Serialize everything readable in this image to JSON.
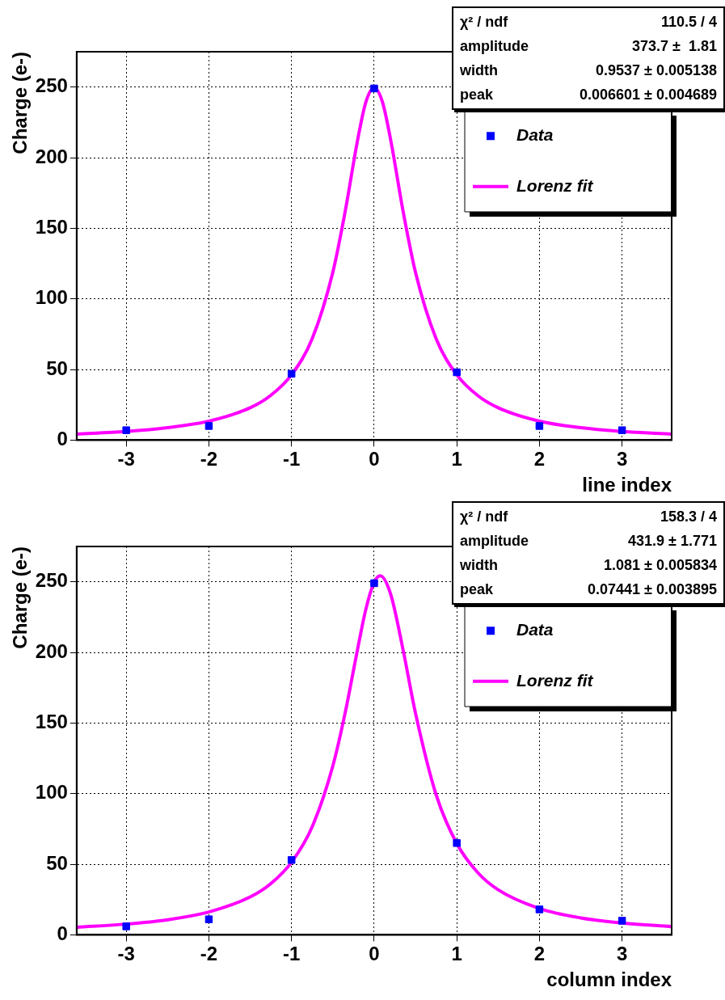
{
  "chart_data": [
    {
      "type": "scatter",
      "xlabel": "line index",
      "ylabel": "Charge (e-)",
      "xlim": [
        -3.6,
        3.6
      ],
      "xticks": [
        -3,
        -2,
        -1,
        0,
        1,
        2,
        3
      ],
      "ylim": [
        0,
        275
      ],
      "yticks": [
        0,
        50,
        100,
        150,
        200,
        250
      ],
      "grid": true,
      "legend": "top right",
      "annotations": [
        "χ² / ndf",
        "110.5 / 4",
        "amplitude",
        "373.7 ±  1.81",
        "width",
        "0.9537 ± 0.005138",
        "peak",
        "0.006601 ± 0.004689"
      ],
      "series": [
        {
          "name": "Data",
          "type": "scatter",
          "marker": "square",
          "color": "#0000ff",
          "x": [
            -3,
            -2,
            -1,
            0,
            1,
            2,
            3
          ],
          "values": [
            7,
            10,
            47,
            249,
            48,
            10,
            7
          ]
        },
        {
          "name": "Lorenz fit",
          "type": "line",
          "marker": "none",
          "line_style": "solid",
          "color": "#ff00ff",
          "x": [
            -3.6,
            -3,
            -2.5,
            -2,
            -1.5,
            -1.25,
            -1,
            -0.75,
            -0.5,
            -0.35,
            -0.2,
            -0.1,
            0,
            0.1,
            0.2,
            0.35,
            0.5,
            0.75,
            1,
            1.25,
            1.5,
            2,
            2.5,
            3,
            3.6
          ],
          "values": [
            4.3,
            6.1,
            8.8,
            13.4,
            22.9,
            31.7,
            46.2,
            71.8,
            118.9,
            162.1,
            212.5,
            239.4,
            249.5,
            239.4,
            212.5,
            162.1,
            118.9,
            71.8,
            46.2,
            31.7,
            22.9,
            13.4,
            8.8,
            6.1,
            4.3
          ]
        }
      ]
    },
    {
      "type": "scatter",
      "xlabel": "column index",
      "ylabel": "Charge (e-)",
      "xlim": [
        -3.6,
        3.6
      ],
      "xticks": [
        -3,
        -2,
        -1,
        0,
        1,
        2,
        3
      ],
      "ylim": [
        0,
        275
      ],
      "yticks": [
        0,
        50,
        100,
        150,
        200,
        250
      ],
      "grid": true,
      "legend": "top right",
      "annotations": [
        "χ² / ndf",
        "158.3 / 4",
        "amplitude",
        "431.9 ± 1.771",
        "width",
        "1.081 ± 0.005834",
        "peak",
        "0.07441 ± 0.003895"
      ],
      "series": [
        {
          "name": "Data",
          "type": "scatter",
          "marker": "square",
          "color": "#0000ff",
          "x": [
            -3,
            -2,
            -1,
            0,
            1,
            2,
            3
          ],
          "values": [
            6,
            11,
            53,
            249,
            65,
            18,
            10
          ]
        },
        {
          "name": "Lorenz fit",
          "type": "line",
          "marker": "none",
          "line_style": "solid",
          "color": "#ff00ff",
          "x": [
            -3.6,
            -3,
            -2.5,
            -2,
            -1.5,
            -1.25,
            -1,
            -0.75,
            -0.5,
            -0.35,
            -0.2,
            -0.1,
            0,
            0.074,
            0.2,
            0.35,
            0.5,
            0.75,
            1,
            1.25,
            1.5,
            2,
            2.5,
            3,
            3.6
          ],
          "values": [
            5.4,
            7.6,
            10.7,
            16.2,
            26.8,
            36.3,
            51.4,
            76.5,
            119.6,
            157.4,
            202.4,
            230.7,
            249.6,
            254.3,
            241.2,
            201.8,
            157,
            99.2,
            64.6,
            44.3,
            31.9,
            18.6,
            12.0,
            8.4,
            5.8
          ]
        }
      ]
    }
  ]
}
